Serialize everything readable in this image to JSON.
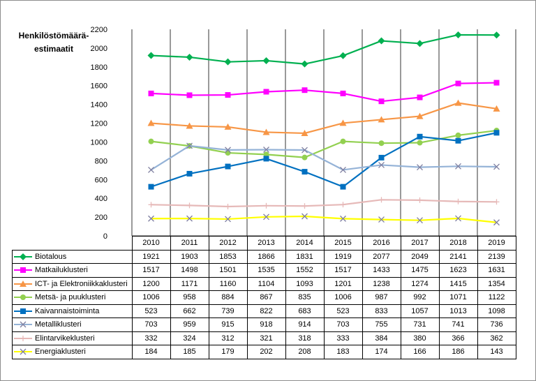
{
  "chart_data": {
    "type": "line",
    "ylabel": "Henkilöstömäärä-estimaatit",
    "ylim": [
      0,
      2200
    ],
    "yticks": [
      0,
      200,
      400,
      600,
      800,
      1000,
      1200,
      1400,
      1600,
      1800,
      2000,
      2200
    ],
    "categories": [
      "2010",
      "2011",
      "2012",
      "2013",
      "2014",
      "2015",
      "2016",
      "2017",
      "2018",
      "2019"
    ],
    "grid": "vertical category separators",
    "legend": "data table below chart",
    "series": [
      {
        "name": "Biotalous",
        "color": "#00B050",
        "marker": "diamond",
        "values": [
          1921,
          1903,
          1853,
          1866,
          1831,
          1919,
          2077,
          2049,
          2141,
          2139
        ]
      },
      {
        "name": "Matkailuklusteri",
        "color": "#FF00FF",
        "marker": "square",
        "values": [
          1517,
          1498,
          1501,
          1535,
          1552,
          1517,
          1433,
          1475,
          1623,
          1631
        ]
      },
      {
        "name": "ICT- ja Elektroniikkaklusteri",
        "color": "#F79646",
        "marker": "triangle",
        "values": [
          1200,
          1171,
          1160,
          1104,
          1093,
          1201,
          1238,
          1274,
          1415,
          1354
        ]
      },
      {
        "name": "Metsä- ja puuklusteri",
        "color": "#92D050",
        "marker": "circle",
        "values": [
          1006,
          958,
          884,
          867,
          835,
          1006,
          987,
          992,
          1071,
          1122
        ]
      },
      {
        "name": "Kaivannaistoiminta",
        "color": "#0070C0",
        "marker": "square",
        "values": [
          523,
          662,
          739,
          822,
          683,
          523,
          833,
          1057,
          1013,
          1098
        ]
      },
      {
        "name": "Metalliklusteri",
        "color": "#95B3D7",
        "marker": "x",
        "values": [
          703,
          959,
          915,
          918,
          914,
          703,
          755,
          731,
          741,
          736
        ]
      },
      {
        "name": "Elintarvikeklusteri",
        "color": "#E6B9B8",
        "marker": "plus",
        "values": [
          332,
          324,
          312,
          321,
          318,
          333,
          384,
          380,
          366,
          362
        ]
      },
      {
        "name": "Energiaklusteri",
        "color": "#FFFF00",
        "marker": "x",
        "values": [
          184,
          185,
          179,
          202,
          208,
          183,
          174,
          166,
          186,
          143
        ]
      }
    ]
  }
}
